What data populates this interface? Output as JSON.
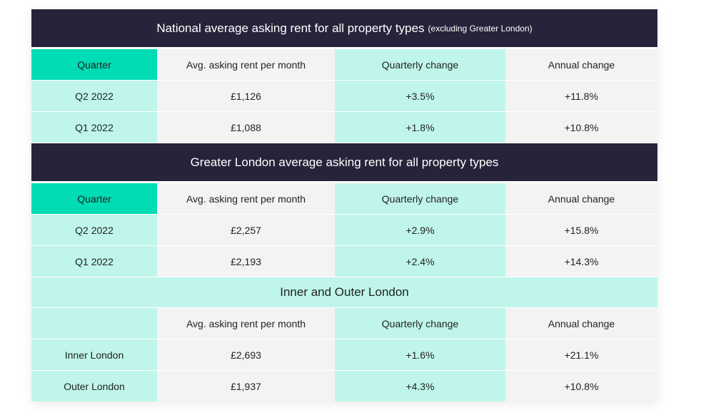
{
  "sections": [
    {
      "title": "National average asking rent for all property types",
      "title_note": "(excluding Greater London)",
      "headers": [
        "Quarter",
        "Avg. asking rent per month",
        "Quarterly change",
        "Annual change"
      ],
      "rows": [
        [
          "Q2 2022",
          "£1,126",
          "+3.5%",
          "+11.8%"
        ],
        [
          "Q1 2022",
          "£1,088",
          "+1.8%",
          "+10.8%"
        ]
      ]
    },
    {
      "title": "Greater London average asking rent for all property types",
      "headers": [
        "Quarter",
        "Avg. asking rent per month",
        "Quarterly change",
        "Annual change"
      ],
      "rows": [
        [
          "Q2 2022",
          "£2,257",
          "+2.9%",
          "+15.8%"
        ],
        [
          "Q1 2022",
          "£2,193",
          "+2.4%",
          "+14.3%"
        ]
      ]
    },
    {
      "subtitle": "Inner and Outer London",
      "headers": [
        "",
        "Avg. asking rent per month",
        "Quarterly change",
        "Annual change"
      ],
      "rows": [
        [
          "Inner London",
          "£2,693",
          "+1.6%",
          "+21.1%"
        ],
        [
          "Outer London",
          "£1,937",
          "+4.3%",
          "+10.8%"
        ]
      ]
    }
  ],
  "colors": {
    "dark": "#25243a",
    "teal": "#00dcb4",
    "mint": "#bff5ea",
    "grey": "#f3f3f3"
  }
}
